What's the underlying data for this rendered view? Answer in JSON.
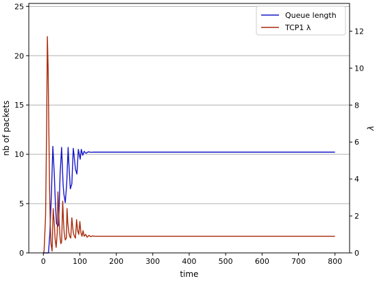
{
  "chart_data": {
    "type": "line",
    "xlabel": "time",
    "ylabel_left": "nb of packets",
    "ylabel_right": "λ",
    "xlim": [
      -40,
      840
    ],
    "ylim_left": [
      0,
      25.3
    ],
    "ylim_right": [
      0,
      13.5
    ],
    "x_ticks": [
      0,
      100,
      200,
      300,
      400,
      500,
      600,
      700,
      800
    ],
    "y_left_ticks": [
      0,
      5,
      10,
      15,
      20,
      25
    ],
    "y_right_ticks": [
      0,
      2,
      4,
      6,
      8,
      10,
      12
    ],
    "grid": "horizontal (left axis ticks)",
    "legend_position": "top-right",
    "colors": {
      "queue": "#1515c8",
      "tcp": "#a82a0a"
    },
    "series": [
      {
        "name": "Queue length",
        "axis": "left",
        "x": [
          0,
          10,
          14,
          18,
          22,
          26,
          30,
          33,
          36,
          40,
          42,
          46,
          50,
          54,
          56,
          60,
          64,
          68,
          70,
          74,
          78,
          82,
          84,
          88,
          92,
          96,
          98,
          101,
          104,
          108,
          112,
          117,
          123,
          130,
          140,
          160,
          200,
          400,
          600,
          800
        ],
        "values": [
          0,
          0,
          0,
          2,
          6,
          10.8,
          8,
          5,
          3,
          2.7,
          3,
          8,
          10.7,
          7,
          6,
          5.1,
          7,
          10.7,
          9,
          6.5,
          7,
          10.6,
          10,
          8.5,
          8,
          10.5,
          10.1,
          9.5,
          10.5,
          9.9,
          10.3,
          10.1,
          10.25,
          10.2,
          10.22,
          10.22,
          10.22,
          10.22,
          10.22,
          10.22
        ]
      },
      {
        "name": "TCP1 λ",
        "axis": "right",
        "x": [
          0,
          2,
          6,
          9,
          11,
          13,
          15,
          17,
          19,
          21,
          24,
          27,
          30,
          32,
          35,
          38,
          40,
          43,
          46,
          48,
          50,
          53,
          55,
          57,
          60,
          63,
          65,
          67,
          70,
          72,
          75,
          78,
          80,
          82,
          85,
          88,
          91,
          94,
          97,
          100,
          103,
          106,
          109,
          112,
          116,
          120,
          125,
          130,
          135,
          140,
          150,
          200,
          400,
          600,
          800
        ],
        "values": [
          0,
          0.1,
          2,
          7,
          11.7,
          10,
          6.5,
          3.5,
          1.5,
          0.5,
          0.1,
          2.4,
          1.6,
          0.8,
          0.3,
          1.1,
          3.3,
          1.8,
          0.8,
          0.5,
          0.6,
          2.8,
          1.8,
          1.1,
          0.7,
          0.8,
          2.4,
          1.6,
          1.1,
          0.9,
          0.8,
          1.9,
          1.5,
          1.1,
          0.9,
          0.8,
          1.8,
          1.2,
          1.0,
          1.7,
          1.1,
          0.9,
          1.2,
          0.9,
          1.0,
          0.85,
          0.95,
          0.88,
          0.92,
          0.9,
          0.9,
          0.9,
          0.9,
          0.9,
          0.9
        ]
      }
    ]
  }
}
